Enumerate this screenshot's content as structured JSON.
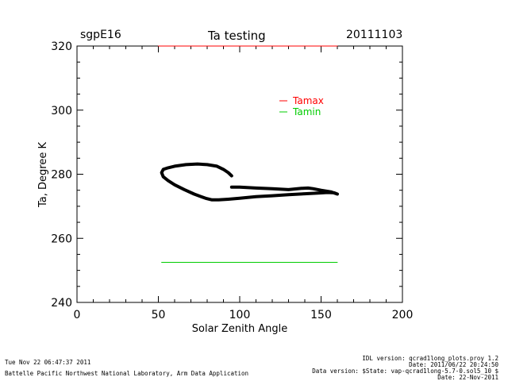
{
  "header": {
    "left": "sgpE16",
    "title": "Ta testing",
    "right": "20111103"
  },
  "chart_data": {
    "type": "line",
    "title": "Ta testing",
    "xlabel": "Solar Zenith Angle",
    "ylabel": "Ta, Degree K",
    "xlim": [
      0,
      200
    ],
    "ylim": [
      240,
      320
    ],
    "xticks": [
      0,
      50,
      100,
      150,
      200
    ],
    "yticks": [
      240,
      260,
      280,
      300,
      320
    ],
    "legend": {
      "placement": "top-right-inside"
    },
    "series": [
      {
        "name": "Tamax",
        "color": "#ff0000",
        "x": [
          50,
          160
        ],
        "y": [
          320,
          320
        ]
      },
      {
        "name": "Tamin",
        "color": "#00cc00",
        "x": [
          52,
          160
        ],
        "y": [
          252.5,
          252.5
        ]
      },
      {
        "name": "",
        "color": "#000000",
        "x": [
          95,
          93,
          90,
          86,
          80,
          74,
          67,
          60,
          56,
          53,
          52,
          53,
          56,
          60,
          66,
          72,
          79,
          83,
          87,
          93,
          100,
          110,
          120,
          130,
          140,
          148,
          154,
          158,
          160,
          156,
          150,
          145,
          142,
          138,
          130,
          120,
          110,
          100,
          95
        ],
        "y": [
          279.5,
          280.5,
          281.5,
          282.5,
          283.0,
          283.2,
          283.0,
          282.5,
          282.0,
          281.5,
          280.5,
          279.2,
          278.0,
          276.7,
          275.2,
          273.8,
          272.5,
          272.0,
          272.0,
          272.2,
          272.5,
          273.0,
          273.3,
          273.6,
          273.9,
          274.1,
          274.3,
          274.2,
          273.8,
          274.5,
          275.0,
          275.5,
          275.7,
          275.6,
          275.2,
          275.5,
          275.7,
          276.0,
          276.0
        ]
      }
    ]
  },
  "footer": {
    "timestamp": "Tue Nov 22 06:47:37 2011",
    "institution": "Battelle Pacific Northwest National Laboratory, Arm Data Application",
    "idl_version": "IDL version: qcrad1long_plots.proy 1.2",
    "idl_date": "Date: 2011/06/22 20:24:50",
    "data_version": "Data version: $State: vap-qcrad1long-5.7-0.sol5_10 $",
    "data_date": "Date: 22-Nov-2011"
  }
}
